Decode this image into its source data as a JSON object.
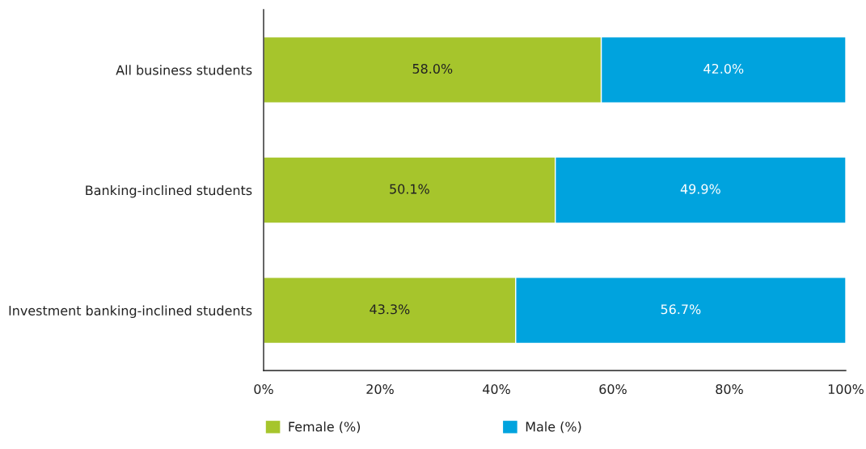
{
  "chart_data": {
    "type": "bar",
    "orientation": "horizontal",
    "stacked": true,
    "categories": [
      "All business students",
      "Banking-inclined students",
      "Investment banking-inclined students"
    ],
    "series": [
      {
        "name": "Female (%)",
        "color": "#a6c52c",
        "values": [
          58.0,
          50.1,
          43.3
        ],
        "value_labels": [
          "58.0%",
          "50.1%",
          "43.3%"
        ]
      },
      {
        "name": "Male (%)",
        "color": "#00a3de",
        "values": [
          42.0,
          49.9,
          56.7
        ],
        "value_labels": [
          "42.0%",
          "49.9%",
          "56.7%"
        ]
      }
    ],
    "xlim": [
      0,
      100
    ],
    "xticks": [
      {
        "value": 0,
        "label": "0%"
      },
      {
        "value": 20,
        "label": "20%"
      },
      {
        "value": 40,
        "label": "40%"
      },
      {
        "value": 60,
        "label": "60%"
      },
      {
        "value": 80,
        "label": "80%"
      },
      {
        "value": 100,
        "label": "100%"
      }
    ],
    "grid": false,
    "legend": "bottom"
  }
}
